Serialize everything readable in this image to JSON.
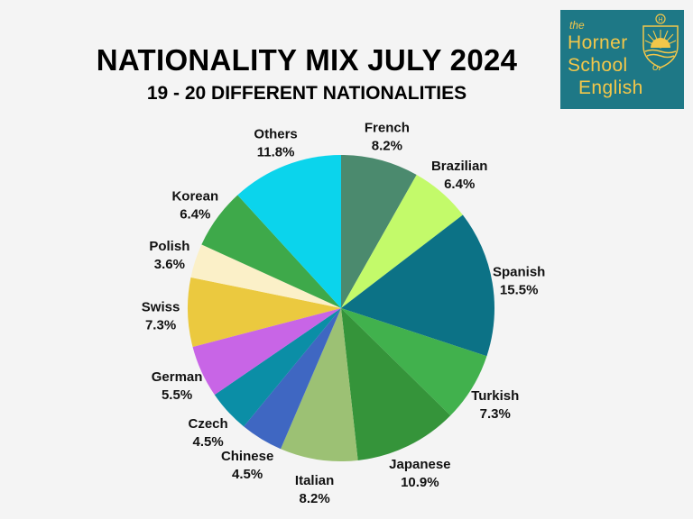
{
  "title": "NATIONALITY MIX JULY 2024",
  "subtitle": "19 - 20 DIFFERENT NATIONALITIES",
  "logo": {
    "the": "the",
    "horner": "Horner",
    "school": "School",
    "of": "of",
    "english": "English",
    "shield_letter": "H",
    "icon": "sunrise-shield-icon"
  },
  "chart_data": {
    "type": "pie",
    "title": "NATIONALITY MIX JULY 2024",
    "subtitle": "19 - 20 DIFFERENT NATIONALITIES",
    "legend": "none",
    "slices": [
      {
        "label": "French",
        "value": 8.2,
        "value_text": "8.2%",
        "color": "#4b8a6e"
      },
      {
        "label": "Brazilian",
        "value": 6.4,
        "value_text": "6.4%",
        "color": "#c3fa6a"
      },
      {
        "label": "Spanish",
        "value": 15.5,
        "value_text": "15.5%",
        "color": "#0c7286"
      },
      {
        "label": "Turkish",
        "value": 7.3,
        "value_text": "7.3%",
        "color": "#41b14d"
      },
      {
        "label": "Japanese",
        "value": 10.9,
        "value_text": "10.9%",
        "color": "#35943a"
      },
      {
        "label": "Italian",
        "value": 8.2,
        "value_text": "8.2%",
        "color": "#9cc174"
      },
      {
        "label": "Chinese",
        "value": 4.5,
        "value_text": "4.5%",
        "color": "#3f67c2"
      },
      {
        "label": "Czech",
        "value": 4.5,
        "value_text": "4.5%",
        "color": "#0b8ea6"
      },
      {
        "label": "German",
        "value": 5.5,
        "value_text": "5.5%",
        "color": "#c865e6"
      },
      {
        "label": "Swiss",
        "value": 7.3,
        "value_text": "7.3%",
        "color": "#ebc93f"
      },
      {
        "label": "Polish",
        "value": 3.6,
        "value_text": "3.6%",
        "color": "#fbf0c8"
      },
      {
        "label": "Korean",
        "value": 6.4,
        "value_text": "6.4%",
        "color": "#3ea94a"
      },
      {
        "label": "Others",
        "value": 11.8,
        "value_text": "11.8%",
        "color": "#0bd4ec"
      }
    ]
  }
}
